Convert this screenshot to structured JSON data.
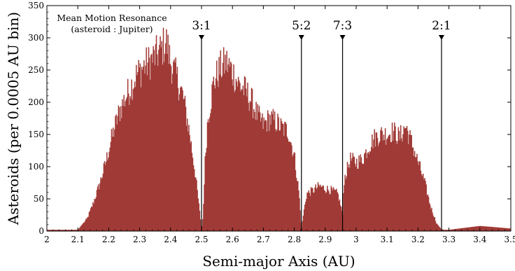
{
  "chart_data": {
    "type": "area",
    "xlabel": "Semi-major Axis (AU)",
    "ylabel": "Asteroids (per 0.0005 AU bin)",
    "xlim": [
      2.0,
      3.5
    ],
    "ylim": [
      0,
      350
    ],
    "xticks": [
      "2",
      "2.1",
      "2.2",
      "2.3",
      "2.4",
      "2.5",
      "2.6",
      "2.7",
      "2.8",
      "2.9",
      "3",
      "3.1",
      "3.2",
      "3.3",
      "3.4",
      "3.5"
    ],
    "yticks": [
      "0",
      "50",
      "100",
      "150",
      "200",
      "250",
      "300",
      "350"
    ],
    "annotation": [
      "Mean Motion Resonance",
      "(asteroid : Jupiter)"
    ],
    "resonances": [
      {
        "label": "3:1",
        "x": 2.5
      },
      {
        "label": "5:2",
        "x": 2.823
      },
      {
        "label": "7:3",
        "x": 2.956
      },
      {
        "label": "2:1",
        "x": 3.276
      }
    ],
    "fill_color": "#a03a36",
    "envelope": [
      [
        2.0,
        2
      ],
      [
        2.1,
        2
      ],
      [
        2.11,
        8
      ],
      [
        2.13,
        20
      ],
      [
        2.15,
        45
      ],
      [
        2.17,
        75
      ],
      [
        2.19,
        110
      ],
      [
        2.21,
        150
      ],
      [
        2.23,
        185
      ],
      [
        2.25,
        210
      ],
      [
        2.27,
        230
      ],
      [
        2.29,
        250
      ],
      [
        2.31,
        262
      ],
      [
        2.33,
        270
      ],
      [
        2.35,
        280
      ],
      [
        2.37,
        290
      ],
      [
        2.385,
        305
      ],
      [
        2.4,
        270
      ],
      [
        2.42,
        245
      ],
      [
        2.44,
        215
      ],
      [
        2.46,
        160
      ],
      [
        2.48,
        90
      ],
      [
        2.495,
        25
      ],
      [
        2.5,
        2
      ],
      [
        2.505,
        25
      ],
      [
        2.51,
        100
      ],
      [
        2.52,
        180
      ],
      [
        2.54,
        240
      ],
      [
        2.56,
        260
      ],
      [
        2.58,
        270
      ],
      [
        2.6,
        255
      ],
      [
        2.62,
        235
      ],
      [
        2.64,
        225
      ],
      [
        2.66,
        210
      ],
      [
        2.68,
        185
      ],
      [
        2.7,
        170
      ],
      [
        2.72,
        180
      ],
      [
        2.74,
        175
      ],
      [
        2.76,
        165
      ],
      [
        2.78,
        160
      ],
      [
        2.8,
        120
      ],
      [
        2.815,
        60
      ],
      [
        2.823,
        2
      ],
      [
        2.83,
        30
      ],
      [
        2.84,
        60
      ],
      [
        2.86,
        65
      ],
      [
        2.88,
        72
      ],
      [
        2.9,
        68
      ],
      [
        2.92,
        65
      ],
      [
        2.94,
        60
      ],
      [
        2.955,
        30
      ],
      [
        2.956,
        20
      ],
      [
        2.96,
        80
      ],
      [
        2.98,
        115
      ],
      [
        3.0,
        110
      ],
      [
        3.02,
        115
      ],
      [
        3.04,
        135
      ],
      [
        3.06,
        150
      ],
      [
        3.08,
        155
      ],
      [
        3.1,
        155
      ],
      [
        3.12,
        160
      ],
      [
        3.14,
        150
      ],
      [
        3.16,
        168
      ],
      [
        3.18,
        140
      ],
      [
        3.2,
        110
      ],
      [
        3.22,
        80
      ],
      [
        3.24,
        40
      ],
      [
        3.26,
        12
      ],
      [
        3.276,
        2
      ],
      [
        3.3,
        2
      ],
      [
        3.35,
        5
      ],
      [
        3.4,
        8
      ],
      [
        3.45,
        6
      ],
      [
        3.5,
        4
      ]
    ]
  }
}
